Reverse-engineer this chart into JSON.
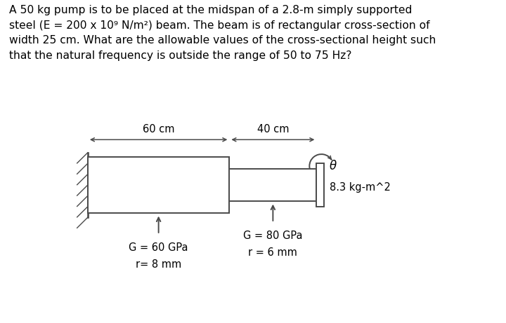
{
  "title_text": "A 50 kg pump is to be placed at the midspan of a 2.8-m simply supported\nsteel (E = 200 x 10⁹ N/m²) beam. The beam is of rectangular cross-section of\nwidth 25 cm. What are the allowable values of the cross-sectional height such\nthat the natural frequency is outside the range of 50 to 75 Hz?",
  "label_60cm": "60 cm",
  "label_40cm": "40 cm",
  "label_theta": "θ",
  "label_inertia": "8.3 kg-m^2",
  "label_G1": "G = 60 GPa",
  "label_r1": "r= 8 mm",
  "label_G2": "G = 80 GPa",
  "label_r2": "r = 6 mm",
  "bg_color": "#ffffff",
  "line_color": "#4a4a4a",
  "text_color": "#000000",
  "title_fontsize": 11.2,
  "label_fontsize": 10.5
}
